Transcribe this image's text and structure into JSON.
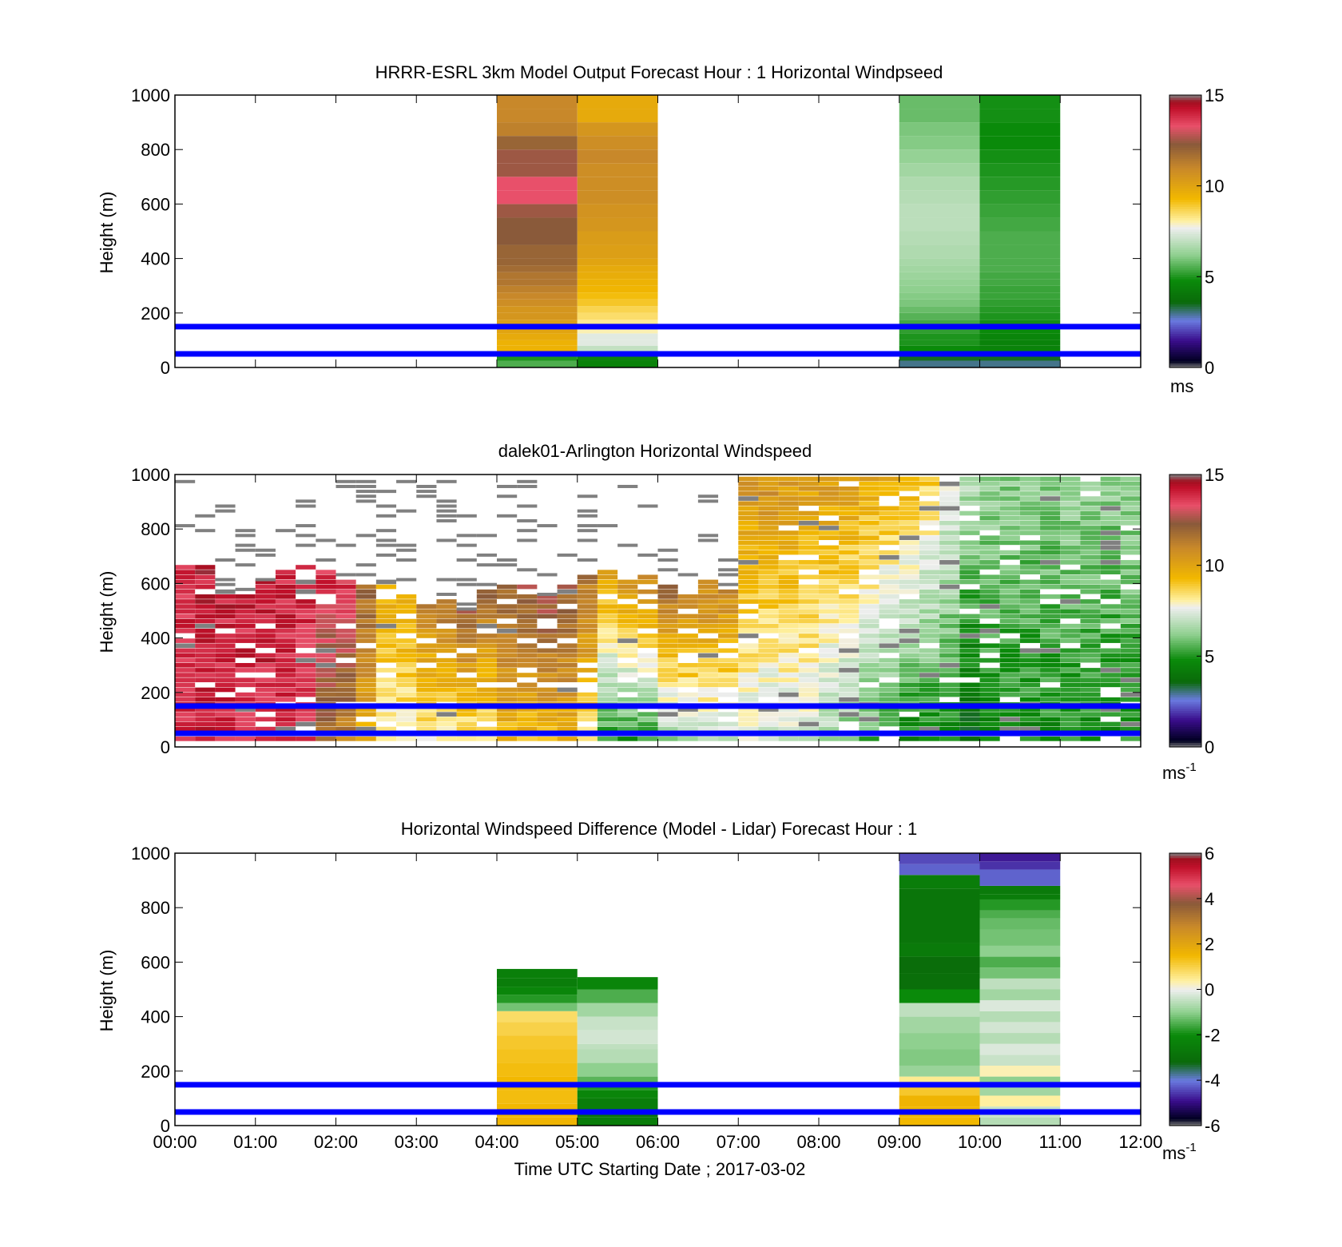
{
  "figure": {
    "xlabel": "Time UTC  Starting Date ; 2017-03-02",
    "x_ticks": [
      "00:00",
      "01:00",
      "02:00",
      "03:00",
      "04:00",
      "05:00",
      "06:00",
      "07:00",
      "08:00",
      "09:00",
      "10:00",
      "11:00",
      "12:00"
    ]
  },
  "speed_colormap": [
    {
      "v": 0,
      "c": "#808080"
    },
    {
      "v": 0.35,
      "c": "#000020"
    },
    {
      "v": 1.5,
      "c": "#3a0d8c"
    },
    {
      "v": 2.6,
      "c": "#6a7be0"
    },
    {
      "v": 3.6,
      "c": "#0a6a0a"
    },
    {
      "v": 4.8,
      "c": "#0a8a0a"
    },
    {
      "v": 6.2,
      "c": "#8fd08f"
    },
    {
      "v": 7.7,
      "c": "#eeeeee"
    },
    {
      "v": 8.1,
      "c": "#fff0a0"
    },
    {
      "v": 9.3,
      "c": "#f2b800"
    },
    {
      "v": 11.0,
      "c": "#c8882a"
    },
    {
      "v": 12.3,
      "c": "#8a5a3a"
    },
    {
      "v": 13.3,
      "c": "#e8506a"
    },
    {
      "v": 14.3,
      "c": "#c0102a"
    },
    {
      "v": 14.65,
      "c": "#a01020"
    },
    {
      "v": 15,
      "c": "#808080"
    }
  ],
  "diff_colormap": [
    {
      "v": -6,
      "c": "#808080"
    },
    {
      "v": -5.7,
      "c": "#000020"
    },
    {
      "v": -4.9,
      "c": "#3a0d8c"
    },
    {
      "v": -4.0,
      "c": "#6a7be0"
    },
    {
      "v": -3.2,
      "c": "#0a6a0a"
    },
    {
      "v": -2.0,
      "c": "#0a8a0a"
    },
    {
      "v": -1.0,
      "c": "#8fd08f"
    },
    {
      "v": 0,
      "c": "#eeeeee"
    },
    {
      "v": 0.4,
      "c": "#fff0a0"
    },
    {
      "v": 1.5,
      "c": "#f2b800"
    },
    {
      "v": 2.8,
      "c": "#c8882a"
    },
    {
      "v": 3.8,
      "c": "#8a5a3a"
    },
    {
      "v": 4.6,
      "c": "#e8506a"
    },
    {
      "v": 5.4,
      "c": "#c0102a"
    },
    {
      "v": 5.75,
      "c": "#a01020"
    },
    {
      "v": 6,
      "c": "#808080"
    }
  ],
  "chart_data": [
    {
      "type": "heatmap",
      "title": "HRRR-ESRL 3km Model Output   Forecast Hour : 1 Horizontal Windpseed",
      "ylabel": "Height (m)",
      "xlim": [
        0,
        12
      ],
      "ylim": [
        0,
        1000
      ],
      "y_ticks": [
        "0",
        "200",
        "400",
        "600",
        "800",
        "1000"
      ],
      "colorbar": {
        "range": [
          0,
          15
        ],
        "ticks": [
          "0",
          "5",
          "10",
          "15"
        ],
        "unit": "ms"
      },
      "reference_lines_m": [
        50,
        150
      ],
      "columns": [
        {
          "t0": 4,
          "t1": 5,
          "h": [
            25,
            40,
            60,
            80,
            100,
            125,
            150,
            175,
            200,
            225,
            250,
            275,
            300,
            325,
            350,
            375,
            400,
            450,
            500,
            550,
            600,
            650,
            700,
            750,
            800,
            850,
            900,
            950,
            1000
          ],
          "v": [
            5.5,
            5.0,
            9.5,
            9.5,
            9.5,
            9.8,
            10.0,
            10.2,
            10.5,
            10.5,
            10.8,
            11.0,
            11.2,
            11.5,
            11.5,
            11.8,
            12.0,
            12.0,
            12.3,
            12.3,
            12.5,
            13.3,
            13.3,
            12.5,
            12.5,
            12.0,
            11.2,
            11.0,
            11.0
          ]
        },
        {
          "t0": 5,
          "t1": 6,
          "h": [
            25,
            40,
            60,
            80,
            100,
            125,
            150,
            175,
            200,
            225,
            250,
            275,
            300,
            325,
            350,
            375,
            400,
            450,
            500,
            550,
            600,
            650,
            700,
            750,
            800,
            850,
            900,
            950,
            1000
          ],
          "v": [
            4.5,
            4.5,
            6.5,
            7.0,
            7.5,
            7.5,
            8.0,
            8.2,
            8.5,
            8.7,
            9.0,
            9.2,
            9.4,
            9.5,
            9.7,
            9.8,
            10.0,
            10.2,
            10.3,
            10.5,
            10.6,
            10.8,
            10.8,
            10.8,
            11.0,
            10.8,
            10.5,
            9.8,
            9.8
          ]
        },
        {
          "t0": 9,
          "t1": 10,
          "h": [
            25,
            40,
            60,
            80,
            100,
            125,
            150,
            175,
            200,
            225,
            250,
            275,
            300,
            325,
            350,
            375,
            400,
            450,
            500,
            550,
            600,
            650,
            700,
            750,
            800,
            850,
            900,
            950,
            1000
          ],
          "v": [
            3.0,
            3.5,
            4.5,
            4.8,
            5.0,
            5.0,
            5.2,
            5.4,
            5.6,
            5.8,
            6.0,
            6.1,
            6.2,
            6.3,
            6.4,
            6.5,
            6.6,
            6.7,
            6.8,
            6.9,
            6.9,
            6.8,
            6.7,
            6.5,
            6.3,
            6.1,
            6.0,
            5.8,
            5.8
          ]
        },
        {
          "t0": 10,
          "t1": 11,
          "h": [
            25,
            40,
            60,
            80,
            100,
            125,
            150,
            175,
            200,
            225,
            250,
            275,
            300,
            325,
            350,
            375,
            400,
            450,
            500,
            550,
            600,
            650,
            700,
            750,
            800,
            850,
            900,
            950,
            1000
          ],
          "v": [
            3.0,
            3.5,
            4.5,
            4.5,
            4.5,
            4.6,
            4.8,
            4.9,
            5.0,
            5.1,
            5.2,
            5.3,
            5.3,
            5.4,
            5.4,
            5.5,
            5.5,
            5.5,
            5.5,
            5.4,
            5.3,
            5.2,
            5.1,
            5.0,
            4.9,
            4.8,
            4.8,
            4.9,
            4.9
          ]
        }
      ]
    },
    {
      "type": "heatmap",
      "title": "dalek01-Arlington  Horizontal Windspeed",
      "ylabel": "Height (m)",
      "xlim": [
        0,
        12
      ],
      "ylim": [
        0,
        1000
      ],
      "y_ticks": [
        "0",
        "200",
        "400",
        "600",
        "800",
        "1000"
      ],
      "colorbar": {
        "range": [
          0,
          15
        ],
        "ticks": [
          "0",
          "5",
          "10",
          "15"
        ],
        "unit": "ms",
        "unit_exponent": "-1"
      },
      "reference_lines_m": [
        50,
        150
      ],
      "column_width_h": 0.25,
      "cell_height_m": 18,
      "profiles": [
        {
          "t": 0.0,
          "v_low": 13.8,
          "v_high": 14.0,
          "top": 650,
          "clear": 0.2
        },
        {
          "t": 0.25,
          "v_low": 14.0,
          "v_high": 14.2,
          "top": 650,
          "clear": 0.25
        },
        {
          "t": 0.5,
          "v_low": 13.9,
          "v_high": 14.1,
          "top": 560,
          "clear": 0.3
        },
        {
          "t": 0.75,
          "v_low": 13.9,
          "v_high": 14.0,
          "top": 550,
          "clear": 0.35
        },
        {
          "t": 1.0,
          "v_low": 14.0,
          "v_high": 14.1,
          "top": 600,
          "clear": 0.3
        },
        {
          "t": 1.25,
          "v_low": 13.8,
          "v_high": 14.0,
          "top": 640,
          "clear": 0.25
        },
        {
          "t": 1.5,
          "v_low": 13.7,
          "v_high": 14.0,
          "top": 650,
          "clear": 0.25
        },
        {
          "t": 1.75,
          "v_low": 11.5,
          "v_high": 13.9,
          "top": 640,
          "clear": 0.25
        },
        {
          "t": 2.0,
          "v_low": 11.0,
          "v_high": 13.8,
          "top": 600,
          "clear": 0.3
        },
        {
          "t": 2.25,
          "v_low": 9.5,
          "v_high": 12.0,
          "top": 590,
          "clear": 0.3
        },
        {
          "t": 2.5,
          "v_low": 7.8,
          "v_high": 9.8,
          "top": 600,
          "clear": 0.35
        },
        {
          "t": 2.75,
          "v_low": 7.8,
          "v_high": 10.0,
          "top": 560,
          "clear": 0.35
        },
        {
          "t": 3.0,
          "v_low": 7.9,
          "v_high": 11.2,
          "top": 520,
          "clear": 0.3
        },
        {
          "t": 3.25,
          "v_low": 7.8,
          "v_high": 11.8,
          "top": 540,
          "clear": 0.3
        },
        {
          "t": 3.5,
          "v_low": 7.8,
          "v_high": 12.2,
          "top": 500,
          "clear": 0.3
        },
        {
          "t": 3.75,
          "v_low": 7.9,
          "v_high": 12.0,
          "top": 560,
          "clear": 0.3
        },
        {
          "t": 4.0,
          "v_low": 9.2,
          "v_high": 12.2,
          "top": 580,
          "clear": 0.25
        },
        {
          "t": 4.25,
          "v_low": 9.0,
          "v_high": 12.5,
          "top": 580,
          "clear": 0.25
        },
        {
          "t": 4.5,
          "v_low": 9.2,
          "v_high": 12.7,
          "top": 550,
          "clear": 0.25
        },
        {
          "t": 4.75,
          "v_low": 9.5,
          "v_high": 12.3,
          "top": 580,
          "clear": 0.25
        },
        {
          "t": 5.0,
          "v_low": 8.5,
          "v_high": 11.5,
          "top": 620,
          "clear": 0.25
        },
        {
          "t": 5.25,
          "v_low": 5.0,
          "v_high": 10.0,
          "top": 640,
          "clear": 0.3
        },
        {
          "t": 5.5,
          "v_low": 4.8,
          "v_high": 10.5,
          "top": 600,
          "clear": 0.3
        },
        {
          "t": 5.75,
          "v_low": 4.8,
          "v_high": 11.0,
          "top": 620,
          "clear": 0.3
        },
        {
          "t": 6.0,
          "v_low": 6.2,
          "v_high": 11.8,
          "top": 580,
          "clear": 0.3
        },
        {
          "t": 6.25,
          "v_low": 6.5,
          "v_high": 11.5,
          "top": 560,
          "clear": 0.3
        },
        {
          "t": 6.5,
          "v_low": 6.8,
          "v_high": 11.2,
          "top": 600,
          "clear": 0.3
        },
        {
          "t": 6.75,
          "v_low": 7.0,
          "v_high": 10.8,
          "top": 560,
          "clear": 0.3
        },
        {
          "t": 7.0,
          "v_low": 7.2,
          "v_high": 10.5,
          "top": 1000,
          "clear": 0.2
        },
        {
          "t": 7.25,
          "v_low": 6.8,
          "v_high": 10.8,
          "top": 1000,
          "clear": 0.2
        },
        {
          "t": 7.5,
          "v_low": 7.0,
          "v_high": 10.5,
          "top": 1000,
          "clear": 0.2
        },
        {
          "t": 7.75,
          "v_low": 7.2,
          "v_high": 10.2,
          "top": 1000,
          "clear": 0.2
        },
        {
          "t": 8.0,
          "v_low": 6.5,
          "v_high": 10.3,
          "top": 1000,
          "clear": 0.2
        },
        {
          "t": 8.25,
          "v_low": 6.0,
          "v_high": 10.3,
          "top": 1000,
          "clear": 0.2
        },
        {
          "t": 8.5,
          "v_low": 5.5,
          "v_high": 10.0,
          "top": 1000,
          "clear": 0.2
        },
        {
          "t": 8.75,
          "v_low": 5.0,
          "v_high": 9.8,
          "top": 1000,
          "clear": 0.2
        },
        {
          "t": 9.0,
          "v_low": 4.6,
          "v_high": 9.5,
          "top": 1000,
          "clear": 0.2
        },
        {
          "t": 9.25,
          "v_low": 4.5,
          "v_high": 9.0,
          "top": 1000,
          "clear": 0.2
        },
        {
          "t": 9.5,
          "v_low": 4.5,
          "v_high": 8.0,
          "top": 1000,
          "clear": 0.2
        },
        {
          "t": 9.75,
          "v_low": 3.5,
          "v_high": 7.0,
          "top": 1000,
          "clear": 0.2
        },
        {
          "t": 10.0,
          "v_low": 4.6,
          "v_high": 6.5,
          "top": 1000,
          "clear": 0.2
        },
        {
          "t": 10.25,
          "v_low": 4.8,
          "v_high": 6.3,
          "top": 1000,
          "clear": 0.2
        },
        {
          "t": 10.5,
          "v_low": 4.7,
          "v_high": 6.2,
          "top": 1000,
          "clear": 0.2
        },
        {
          "t": 10.75,
          "v_low": 4.8,
          "v_high": 6.3,
          "top": 1000,
          "clear": 0.2
        },
        {
          "t": 11.0,
          "v_low": 4.9,
          "v_high": 6.4,
          "top": 1000,
          "clear": 0.2
        },
        {
          "t": 11.25,
          "v_low": 4.8,
          "v_high": 6.2,
          "top": 1000,
          "clear": 0.2
        },
        {
          "t": 11.5,
          "v_low": 4.7,
          "v_high": 6.3,
          "top": 1000,
          "clear": 0.2
        },
        {
          "t": 11.75,
          "v_low": 4.9,
          "v_high": 6.5,
          "top": 1000,
          "clear": 0.2
        }
      ]
    },
    {
      "type": "heatmap",
      "title": "Horizontal Windspeed Difference (Model - Lidar) Forecast Hour : 1",
      "xlabel": "Time UTC  Starting Date ; 2017-03-02",
      "ylabel": "Height (m)",
      "xlim": [
        0,
        12
      ],
      "ylim": [
        0,
        1000
      ],
      "y_ticks": [
        "0",
        "200",
        "400",
        "600",
        "800",
        "1000"
      ],
      "colorbar": {
        "range": [
          -6,
          6
        ],
        "ticks": [
          "-6",
          "-4",
          "-2",
          "0",
          "2",
          "4",
          "6"
        ],
        "unit": "ms",
        "unit_exponent": "-1"
      },
      "reference_lines_m": [
        50,
        150
      ],
      "columns": [
        {
          "t0": 4,
          "t1": 5,
          "h": [
            30,
            80,
            130,
            180,
            230,
            280,
            330,
            380,
            420,
            450,
            480,
            510,
            540,
            575
          ],
          "v": [
            1.6,
            1.5,
            1.4,
            1.5,
            1.4,
            1.3,
            1.2,
            1.0,
            0.8,
            -1.2,
            -1.8,
            -2.2,
            -2.5,
            -2.4
          ]
        },
        {
          "t0": 5,
          "t1": 6,
          "h": [
            30,
            60,
            100,
            130,
            150,
            180,
            230,
            280,
            300,
            350,
            400,
            450,
            500,
            545
          ],
          "v": [
            -2.5,
            -2.8,
            -2.5,
            -2.2,
            -1.8,
            -1.4,
            -1.0,
            -0.6,
            -0.5,
            -0.3,
            -0.4,
            -0.8,
            -1.5,
            -2.2
          ]
        },
        {
          "t0": 9,
          "t1": 10,
          "h": [
            30,
            70,
            110,
            150,
            180,
            220,
            280,
            340,
            400,
            450,
            500,
            560,
            620,
            670,
            870,
            920,
            960,
            1000
          ],
          "v": [
            1.5,
            1.5,
            1.6,
            1.2,
            0.5,
            -0.9,
            -1.1,
            -1.0,
            -0.8,
            -0.5,
            -2.0,
            -3.0,
            -3.1,
            -2.6,
            -2.8,
            -2.5,
            -4.2,
            -4.4
          ]
        },
        {
          "t0": 10,
          "t1": 11,
          "h": [
            30,
            70,
            110,
            150,
            180,
            220,
            260,
            300,
            340,
            380,
            420,
            460,
            500,
            540,
            580,
            620,
            660,
            720,
            760,
            790,
            830,
            850,
            880,
            940,
            970,
            1000
          ],
          "v": [
            -0.6,
            -0.4,
            0.4,
            -0.8,
            -1.0,
            0.3,
            -0.4,
            -0.2,
            -0.6,
            -0.3,
            -0.6,
            -0.2,
            -0.8,
            -0.5,
            -1.2,
            -1.5,
            -1.0,
            -1.2,
            -1.3,
            -1.5,
            -1.8,
            -2.5,
            -2.6,
            -4.2,
            -4.6,
            -4.8
          ]
        }
      ]
    }
  ]
}
